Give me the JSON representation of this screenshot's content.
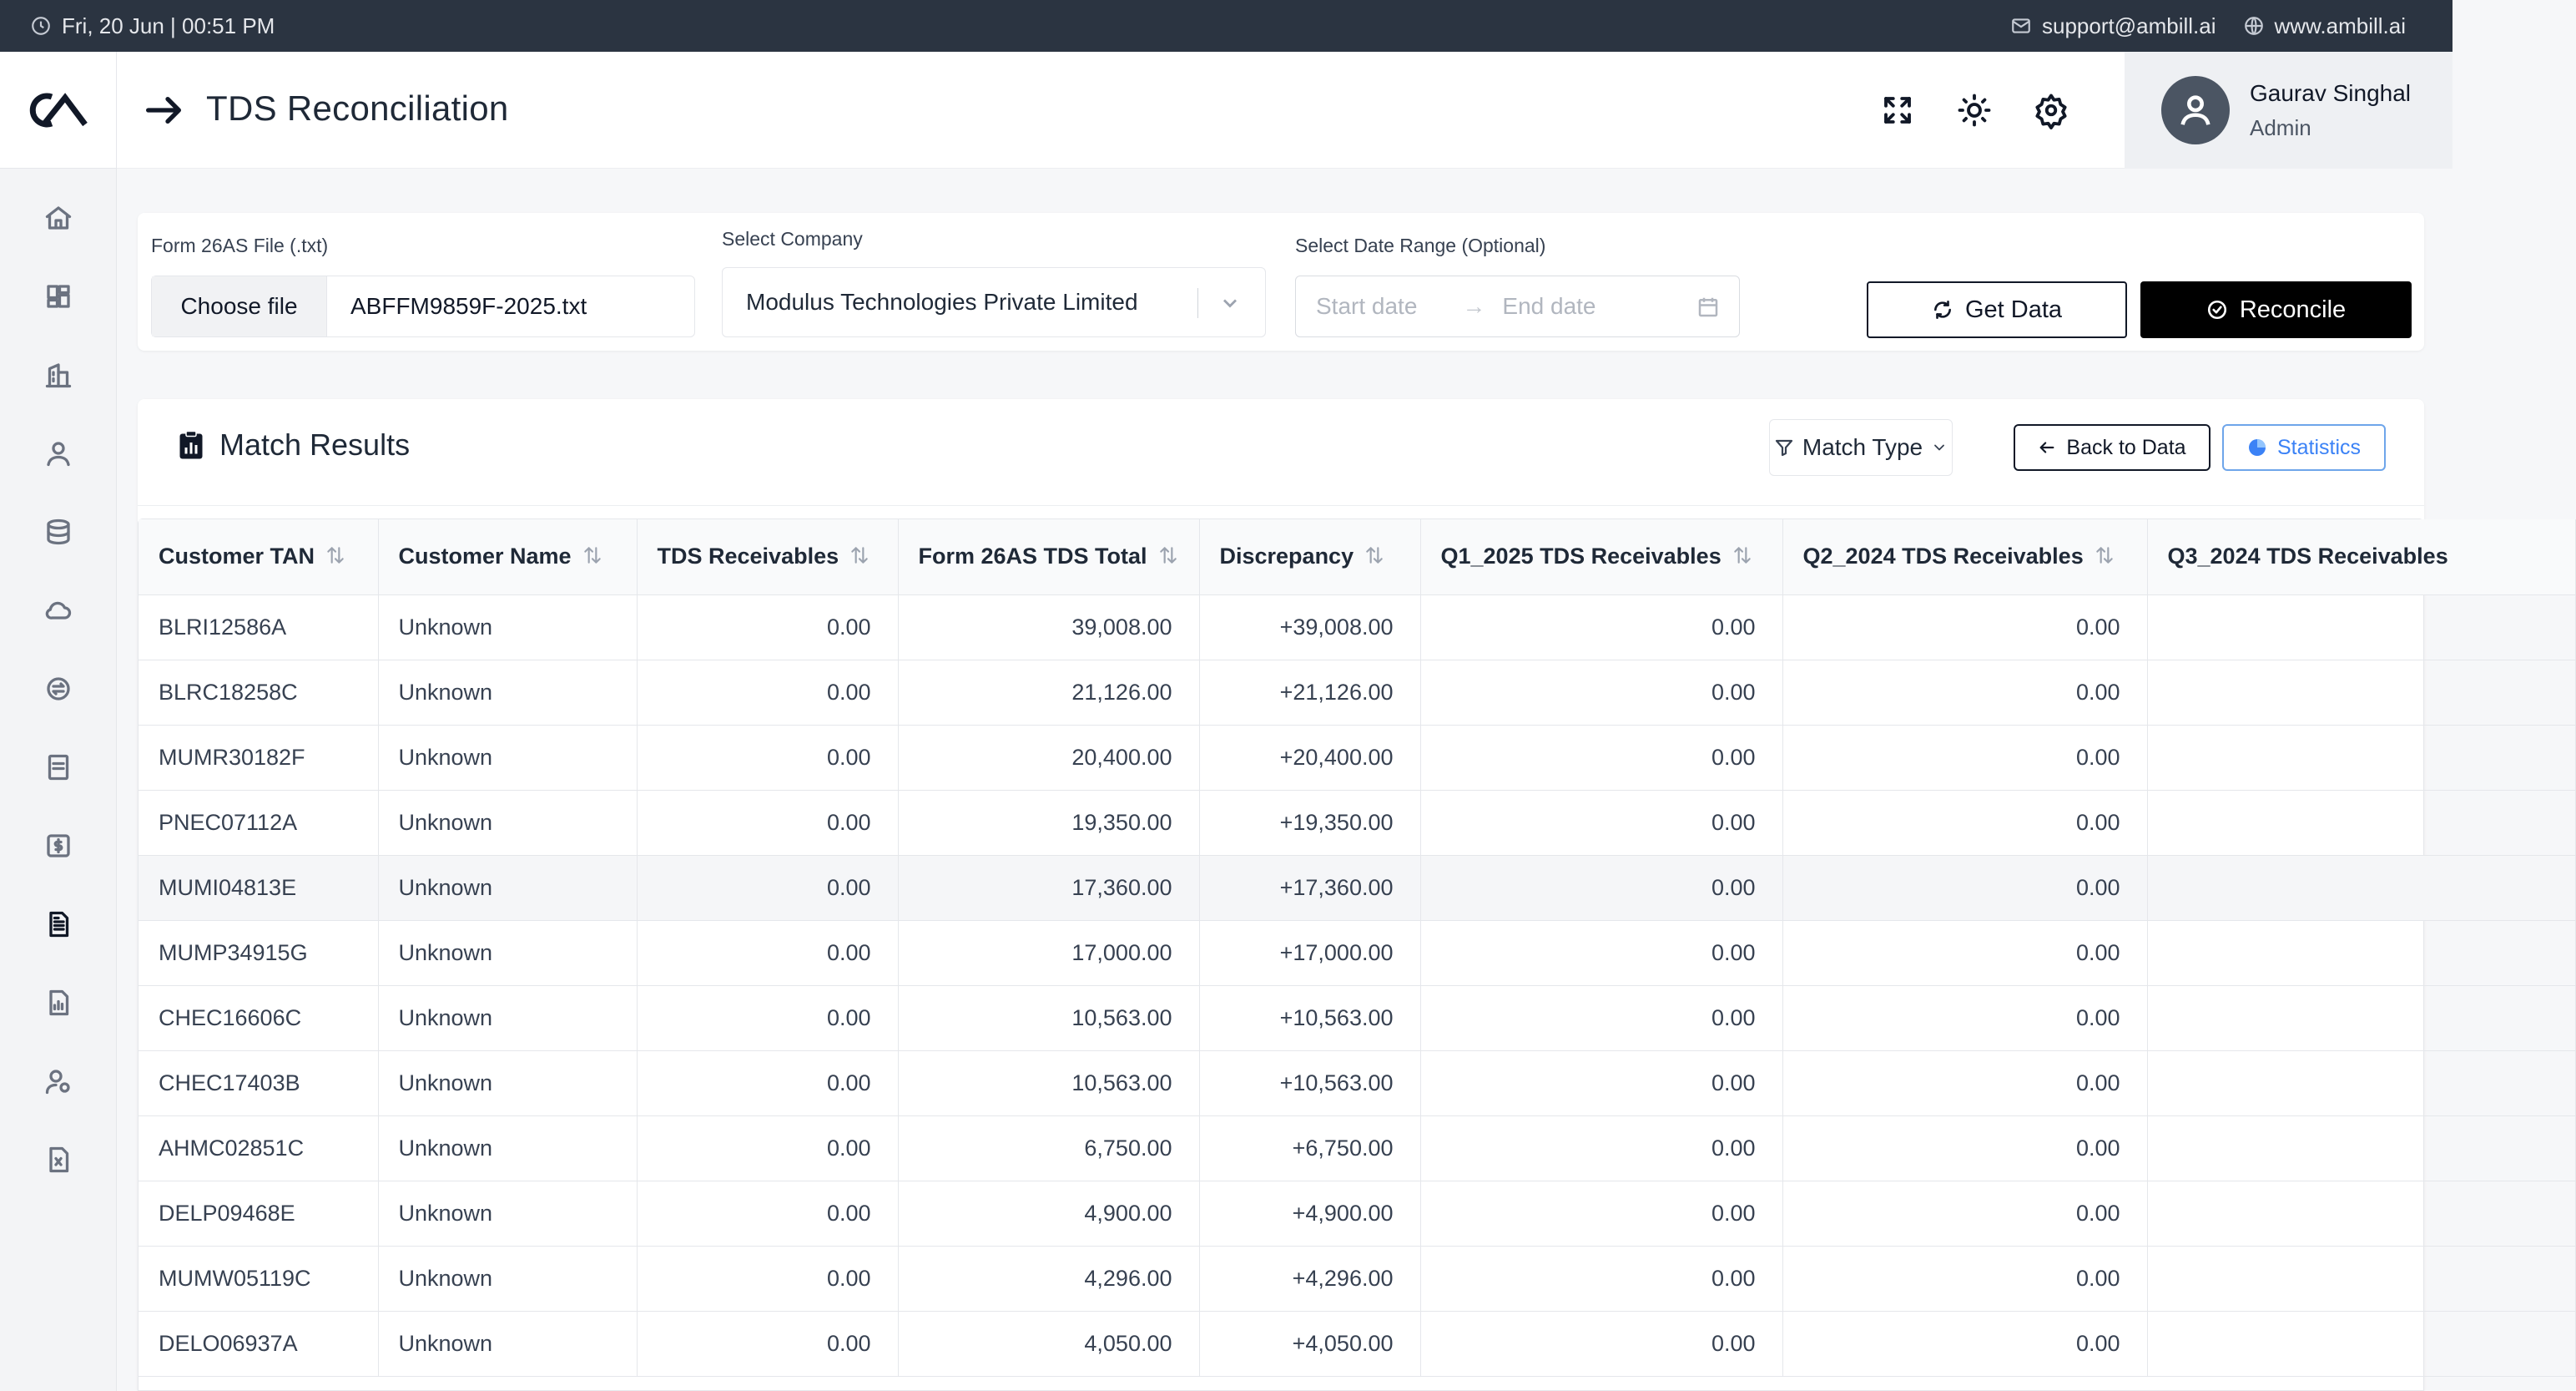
{
  "topbar": {
    "datetime": "Fri, 20 Jun | 00:51 PM",
    "email": "support@ambill.ai",
    "website": "www.ambill.ai"
  },
  "header": {
    "title": "TDS Reconciliation",
    "user_name": "Gaurav Singhal",
    "user_role": "Admin"
  },
  "sidebar": {
    "items": [
      "home-icon",
      "dashboard-icon",
      "building-icon",
      "user-icon",
      "database-icon",
      "cloud-icon",
      "sync-icon",
      "document-icon",
      "dollar-icon",
      "report-icon",
      "chart-icon",
      "user-settings-icon",
      "excel-icon"
    ],
    "active_index": 9
  },
  "form": {
    "file_label": "Form 26AS File (.txt)",
    "choose_file": "Choose file",
    "file_name": "ABFFM9859F-2025.txt",
    "company_label": "Select Company",
    "company_value": "Modulus Technologies Private Limited",
    "date_label": "Select Date Range (Optional)",
    "start_placeholder": "Start date",
    "arrow": "→",
    "end_placeholder": "End date",
    "get_data": "Get Data",
    "reconcile": "Reconcile"
  },
  "results": {
    "title": "Match Results",
    "match_type": "Match Type",
    "back_to_data": "Back to Data",
    "statistics": "Statistics",
    "columns": [
      "Customer TAN",
      "Customer Name",
      "TDS Receivables",
      "Form 26AS TDS Total",
      "Discrepancy",
      "Q1_2025 TDS Receivables",
      "Q2_2024 TDS Receivables",
      "Q3_2024 TDS Receivables"
    ],
    "rows": [
      [
        "BLRI12586A",
        "Unknown",
        "0.00",
        "39,008.00",
        "+39,008.00",
        "0.00",
        "0.00",
        ""
      ],
      [
        "BLRC18258C",
        "Unknown",
        "0.00",
        "21,126.00",
        "+21,126.00",
        "0.00",
        "0.00",
        ""
      ],
      [
        "MUMR30182F",
        "Unknown",
        "0.00",
        "20,400.00",
        "+20,400.00",
        "0.00",
        "0.00",
        ""
      ],
      [
        "PNEC07112A",
        "Unknown",
        "0.00",
        "19,350.00",
        "+19,350.00",
        "0.00",
        "0.00",
        ""
      ],
      [
        "MUMI04813E",
        "Unknown",
        "0.00",
        "17,360.00",
        "+17,360.00",
        "0.00",
        "0.00",
        ""
      ],
      [
        "MUMP34915G",
        "Unknown",
        "0.00",
        "17,000.00",
        "+17,000.00",
        "0.00",
        "0.00",
        ""
      ],
      [
        "CHEC16606C",
        "Unknown",
        "0.00",
        "10,563.00",
        "+10,563.00",
        "0.00",
        "0.00",
        ""
      ],
      [
        "CHEC17403B",
        "Unknown",
        "0.00",
        "10,563.00",
        "+10,563.00",
        "0.00",
        "0.00",
        ""
      ],
      [
        "AHMC02851C",
        "Unknown",
        "0.00",
        "6,750.00",
        "+6,750.00",
        "0.00",
        "0.00",
        ""
      ],
      [
        "DELP09468E",
        "Unknown",
        "0.00",
        "4,900.00",
        "+4,900.00",
        "0.00",
        "0.00",
        ""
      ],
      [
        "MUMW05119C",
        "Unknown",
        "0.00",
        "4,296.00",
        "+4,296.00",
        "0.00",
        "0.00",
        ""
      ],
      [
        "DELO06937A",
        "Unknown",
        "0.00",
        "4,050.00",
        "+4,050.00",
        "0.00",
        "0.00",
        ""
      ]
    ],
    "highlighted_row": 4
  }
}
